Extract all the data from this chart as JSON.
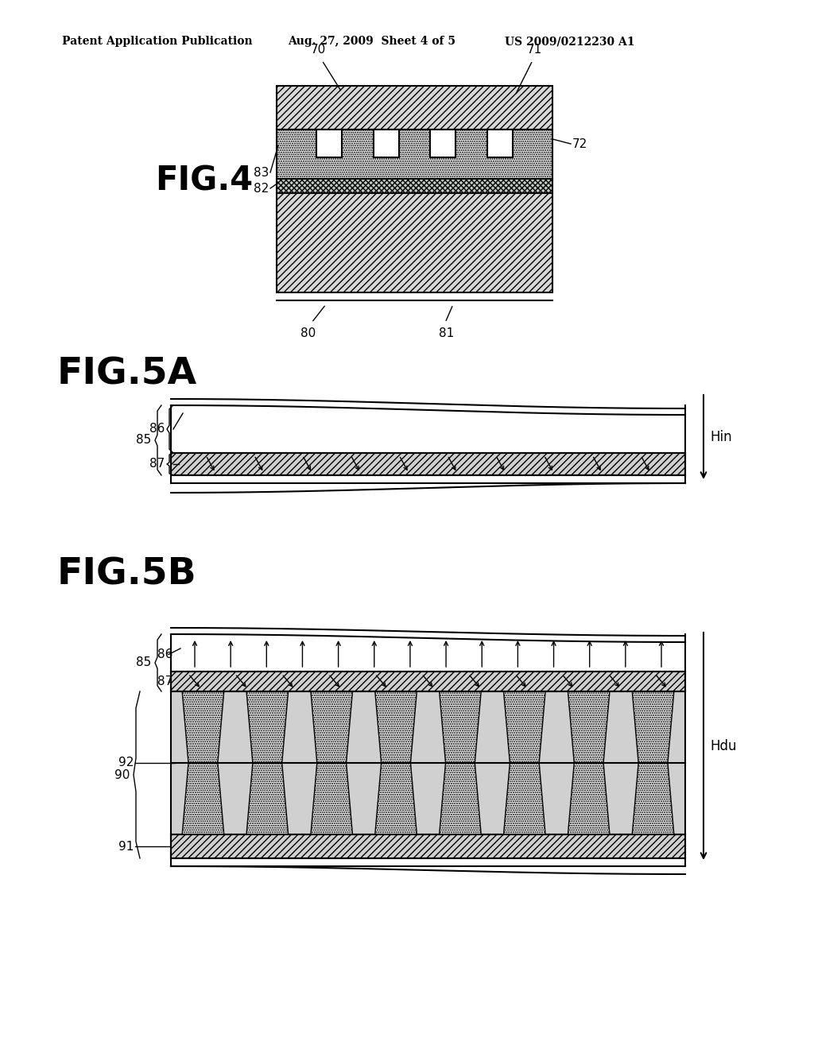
{
  "bg_color": "#ffffff",
  "header_text": "Patent Application Publication",
  "header_date": "Aug. 27, 2009  Sheet 4 of 5",
  "header_patent": "US 2009/0212230 A1",
  "fig4_label": "FIG.4",
  "fig5a_label": "FIG.5A",
  "fig5b_label": "FIG.5B"
}
